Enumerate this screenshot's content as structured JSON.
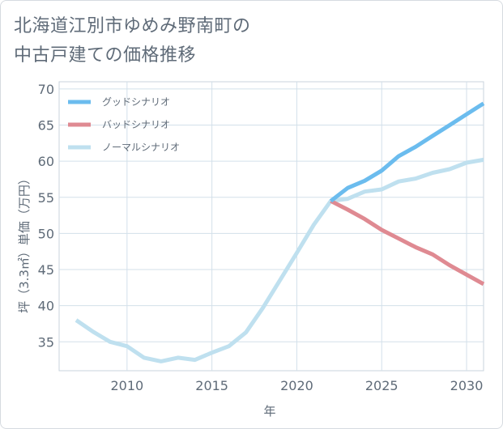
{
  "title_lines": [
    "北海道江別市ゆめみ野南町の",
    "中古戸建ての価格推移"
  ],
  "chart_data": {
    "type": "line",
    "xlabel": "年",
    "ylabel": "坪（3.3㎡）単価（万円）",
    "xlim": [
      2006,
      2031
    ],
    "ylim": [
      31,
      71
    ],
    "xticks": [
      2010,
      2015,
      2020,
      2025,
      2030
    ],
    "yticks": [
      35,
      40,
      45,
      50,
      55,
      60,
      65,
      70
    ],
    "grid": true,
    "legend_position": "top-left",
    "series": [
      {
        "name": "グッドシナリオ",
        "color": "#6bbcee",
        "x": [
          2022,
          2023,
          2024,
          2025,
          2026,
          2027,
          2028,
          2029,
          2030,
          2031
        ],
        "y": [
          54.5,
          56.3,
          57.3,
          58.7,
          60.7,
          62.0,
          63.5,
          65.0,
          66.5,
          68.0
        ]
      },
      {
        "name": "バッドシナリオ",
        "color": "#df8a92",
        "x": [
          2022,
          2023,
          2024,
          2025,
          2026,
          2027,
          2028,
          2029,
          2030,
          2031
        ],
        "y": [
          54.5,
          53.3,
          52.0,
          50.5,
          49.3,
          48.1,
          47.1,
          45.6,
          44.3,
          43.0
        ]
      },
      {
        "name": "ノーマルシナリオ",
        "color": "#bfe0ef",
        "x": [
          2007,
          2008,
          2009,
          2010,
          2011,
          2012,
          2013,
          2014,
          2015,
          2016,
          2017,
          2018,
          2019,
          2020,
          2021,
          2022,
          2023,
          2024,
          2025,
          2026,
          2027,
          2028,
          2029,
          2030,
          2031
        ],
        "y": [
          38.0,
          36.4,
          35.0,
          34.4,
          32.8,
          32.3,
          32.8,
          32.5,
          33.5,
          34.4,
          36.3,
          39.7,
          43.5,
          47.3,
          51.2,
          54.5,
          54.8,
          55.8,
          56.1,
          57.2,
          57.6,
          58.4,
          58.9,
          59.8,
          60.2
        ]
      }
    ]
  }
}
